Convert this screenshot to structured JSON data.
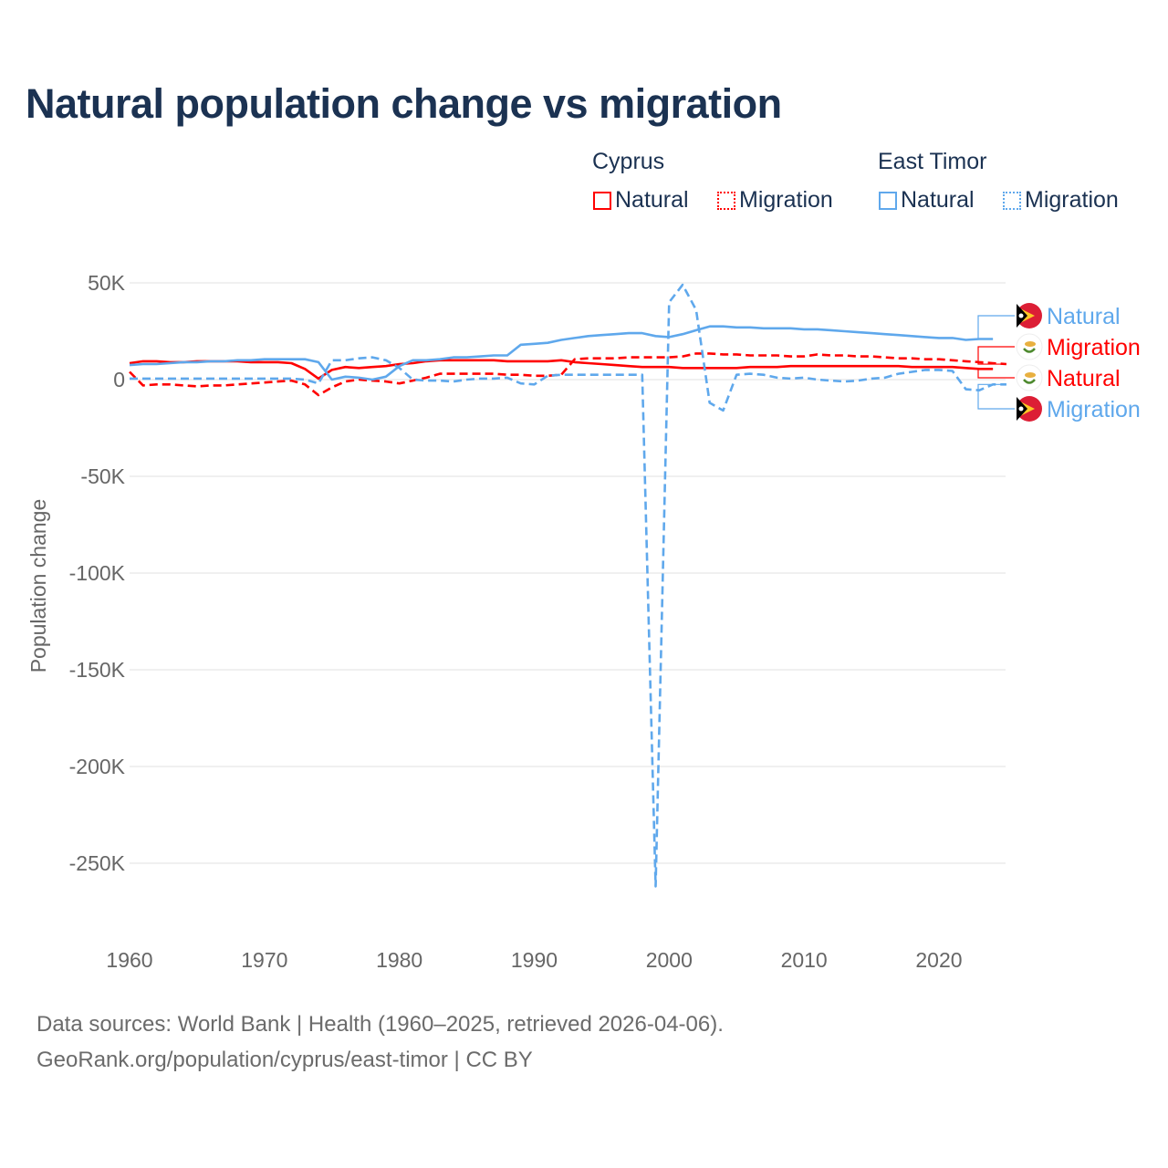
{
  "title": "Natural population change vs migration",
  "legend": {
    "groups": [
      {
        "name": "Cyprus",
        "items": [
          "Natural",
          "Migration"
        ],
        "color": "#ff0000"
      },
      {
        "name": "East Timor",
        "items": [
          "Natural",
          "Migration"
        ],
        "color": "#5fa8ec"
      }
    ]
  },
  "end_labels": [
    {
      "text": "Natural",
      "series": 2,
      "flag": "east-timor-flag"
    },
    {
      "text": "Migration",
      "series": 1,
      "flag": "cyprus-flag"
    },
    {
      "text": "Natural",
      "series": 0,
      "flag": "cyprus-flag"
    },
    {
      "text": "Migration",
      "series": 3,
      "flag": "east-timor-flag"
    }
  ],
  "footer": {
    "line1": "Data sources: World Bank | Health (1960–2025, retrieved 2026-04-06).",
    "line2": "GeoRank.org/population/cyprus/east-timor | CC BY"
  },
  "chart_data": {
    "type": "line",
    "title": "Natural population change vs migration",
    "xlabel": "",
    "ylabel": "Population change",
    "xlim": [
      1960,
      2025
    ],
    "ylim": [
      -265,
      55
    ],
    "y_unit": "thousands",
    "yticks": [
      50,
      0,
      -50,
      -100,
      -150,
      -200,
      -250
    ],
    "ytick_labels": [
      "50K",
      "0",
      "-50K",
      "-100K",
      "-150K",
      "-200K",
      "-250K"
    ],
    "xticks": [
      1960,
      1970,
      1980,
      1990,
      2000,
      2010,
      2020
    ],
    "xtick_labels": [
      "1960",
      "1970",
      "1980",
      "1990",
      "2000",
      "2010",
      "2020"
    ],
    "grid": true,
    "legend_position": "top-right",
    "series": [
      {
        "name": "Cyprus Natural",
        "color": "#ff0000",
        "dash": false,
        "start": 1960,
        "values": [
          8.5,
          9.5,
          9.5,
          9,
          9,
          9.5,
          9.5,
          9.5,
          9.5,
          9,
          9,
          9,
          8.5,
          5.5,
          0.5,
          5,
          6.5,
          6,
          6.5,
          7,
          8,
          8.5,
          9.5,
          10,
          10,
          10,
          10,
          10,
          9.5,
          9.5,
          9.5,
          9.5,
          10,
          9,
          8.5,
          8,
          7.5,
          7,
          6.5,
          6.5,
          6.5,
          6,
          6,
          6,
          6,
          6,
          6.5,
          6.5,
          6.5,
          7,
          7,
          7,
          7,
          7,
          7,
          7,
          7,
          7,
          6.5,
          6.5,
          6.5,
          6.5,
          6,
          5.5,
          5.5
        ]
      },
      {
        "name": "Cyprus Migration",
        "color": "#ff0000",
        "dash": true,
        "start": 1960,
        "values": [
          4,
          -3,
          -2.5,
          -2.5,
          -3,
          -3.5,
          -3,
          -3,
          -2.5,
          -2,
          -1.5,
          -1,
          -0.5,
          -2.5,
          -8,
          -4,
          -1,
          0,
          -0.5,
          -1,
          -2,
          -0.5,
          1,
          3,
          3,
          3,
          3,
          3,
          2.5,
          2.5,
          2,
          2,
          2.5,
          10.5,
          11,
          11,
          11,
          11.5,
          11.5,
          11.5,
          11.5,
          12,
          13.5,
          13.5,
          13,
          13,
          12.5,
          12.5,
          12.5,
          12,
          12,
          13,
          12.5,
          12.5,
          12,
          12,
          11.5,
          11,
          11,
          10.5,
          10.5,
          10,
          9.5,
          9,
          8.5,
          8
        ]
      },
      {
        "name": "East Timor Natural",
        "color": "#5fa8ec",
        "dash": false,
        "start": 1960,
        "values": [
          7.5,
          8,
          8,
          8.5,
          9,
          9,
          9.5,
          9.5,
          10,
          10,
          10.5,
          10.5,
          10.5,
          10.5,
          9,
          0,
          1.5,
          1,
          0,
          1.5,
          7,
          10,
          10,
          10.5,
          11.5,
          11.5,
          12,
          12.5,
          12.5,
          18,
          18.5,
          19,
          20.5,
          21.5,
          22.5,
          23,
          23.5,
          24,
          24,
          22.5,
          22,
          23.5,
          25.5,
          27.5,
          27.5,
          27,
          27,
          26.5,
          26.5,
          26.5,
          26,
          26,
          25.5,
          25,
          24.5,
          24,
          23.5,
          23,
          22.5,
          22,
          21.5,
          21.5,
          20.5,
          21,
          21
        ]
      },
      {
        "name": "East Timor Migration",
        "color": "#5fa8ec",
        "dash": true,
        "start": 1960,
        "values": [
          0.5,
          0.5,
          0.5,
          0.5,
          0.5,
          0.5,
          0.5,
          0.5,
          0.5,
          0.5,
          0.5,
          0.5,
          0.5,
          0,
          -2,
          10,
          10,
          11,
          11.5,
          10,
          6,
          0,
          -0.5,
          -0.5,
          -1,
          0,
          0.5,
          0.5,
          1,
          -2,
          -2.5,
          2,
          2.5,
          2.5,
          2.5,
          2.5,
          2.5,
          2.5,
          2.5,
          -262,
          40,
          49,
          36,
          -12,
          -16,
          2.5,
          3,
          2.5,
          1,
          0.5,
          1,
          0,
          -0.5,
          -1,
          -0.5,
          0.5,
          1,
          3,
          4,
          5,
          5,
          4.5,
          -5,
          -5.5,
          -2.5,
          -2.5
        ]
      }
    ]
  }
}
